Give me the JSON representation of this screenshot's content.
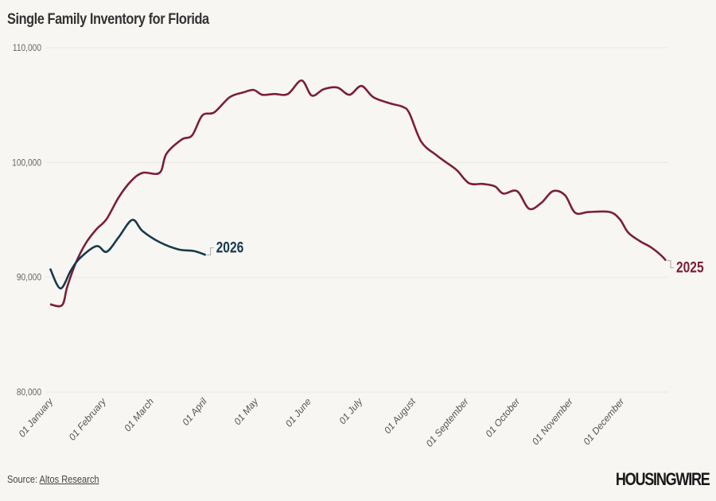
{
  "title": "Single Family Inventory for Florida",
  "source": {
    "label": "Source:",
    "link_text": "Altos Research"
  },
  "logo": "HOUSINGWIRE",
  "chart_data": {
    "type": "line",
    "title": "Single Family Inventory for Florida",
    "xlabel": "",
    "ylabel": "",
    "ylim": [
      80000,
      110000
    ],
    "yticks": [
      80000,
      90000,
      100000,
      110000
    ],
    "ytick_labels": [
      "80,000",
      "90,000",
      "100,000",
      "110,000"
    ],
    "xtick_labels": [
      "01 January",
      "01 February",
      "01 March",
      "01 April",
      "01 May",
      "01 June",
      "01 July",
      "01 August",
      "01 September",
      "01 October",
      "01 November",
      "01 December"
    ],
    "grid": true,
    "legend": "inline labels at line ends",
    "series": [
      {
        "name": "2025",
        "color": "#7b1f38",
        "x": [
          "01-01",
          "01-08",
          "01-11",
          "01-16",
          "01-22",
          "01-28",
          "02-03",
          "02-10",
          "02-17",
          "02-24",
          "03-06",
          "03-10",
          "03-19",
          "03-25",
          "03-31",
          "04-07",
          "04-16",
          "04-24",
          "04-30",
          "05-05",
          "05-12",
          "05-20",
          "05-28",
          "06-03",
          "06-10",
          "06-18",
          "06-25",
          "07-02",
          "07-09",
          "07-19",
          "07-26",
          "07-30",
          "08-06",
          "08-15",
          "08-22",
          "08-27",
          "09-03",
          "09-11",
          "09-18",
          "09-23",
          "10-01",
          "10-08",
          "10-15",
          "10-22",
          "10-29",
          "11-04",
          "11-12",
          "11-24",
          "11-30",
          "12-05",
          "12-12",
          "12-18",
          "12-24",
          "12-27"
        ],
        "values": [
          87640,
          87570,
          89170,
          91250,
          93000,
          94170,
          95070,
          96940,
          98330,
          99100,
          99100,
          100760,
          102010,
          102360,
          104100,
          104370,
          105690,
          106110,
          106320,
          105900,
          105970,
          105970,
          107150,
          105830,
          106390,
          106530,
          105900,
          106670,
          105690,
          105140,
          104860,
          104300,
          101800,
          100620,
          99860,
          99300,
          98190,
          98130,
          97920,
          97290,
          97500,
          95970,
          96460,
          97500,
          97150,
          95620,
          95690,
          95690,
          95070,
          93890,
          93130,
          92640,
          91940,
          91460
        ]
      },
      {
        "name": "2026",
        "color": "#163a4c",
        "x": [
          "01-01",
          "01-07",
          "01-13",
          "01-18",
          "01-28",
          "02-03",
          "02-10",
          "02-18",
          "02-24",
          "03-06",
          "03-17",
          "03-26",
          "04-02"
        ],
        "values": [
          90760,
          89030,
          90560,
          91600,
          92710,
          92220,
          93470,
          95000,
          94030,
          93060,
          92430,
          92290,
          91940
        ]
      }
    ]
  }
}
